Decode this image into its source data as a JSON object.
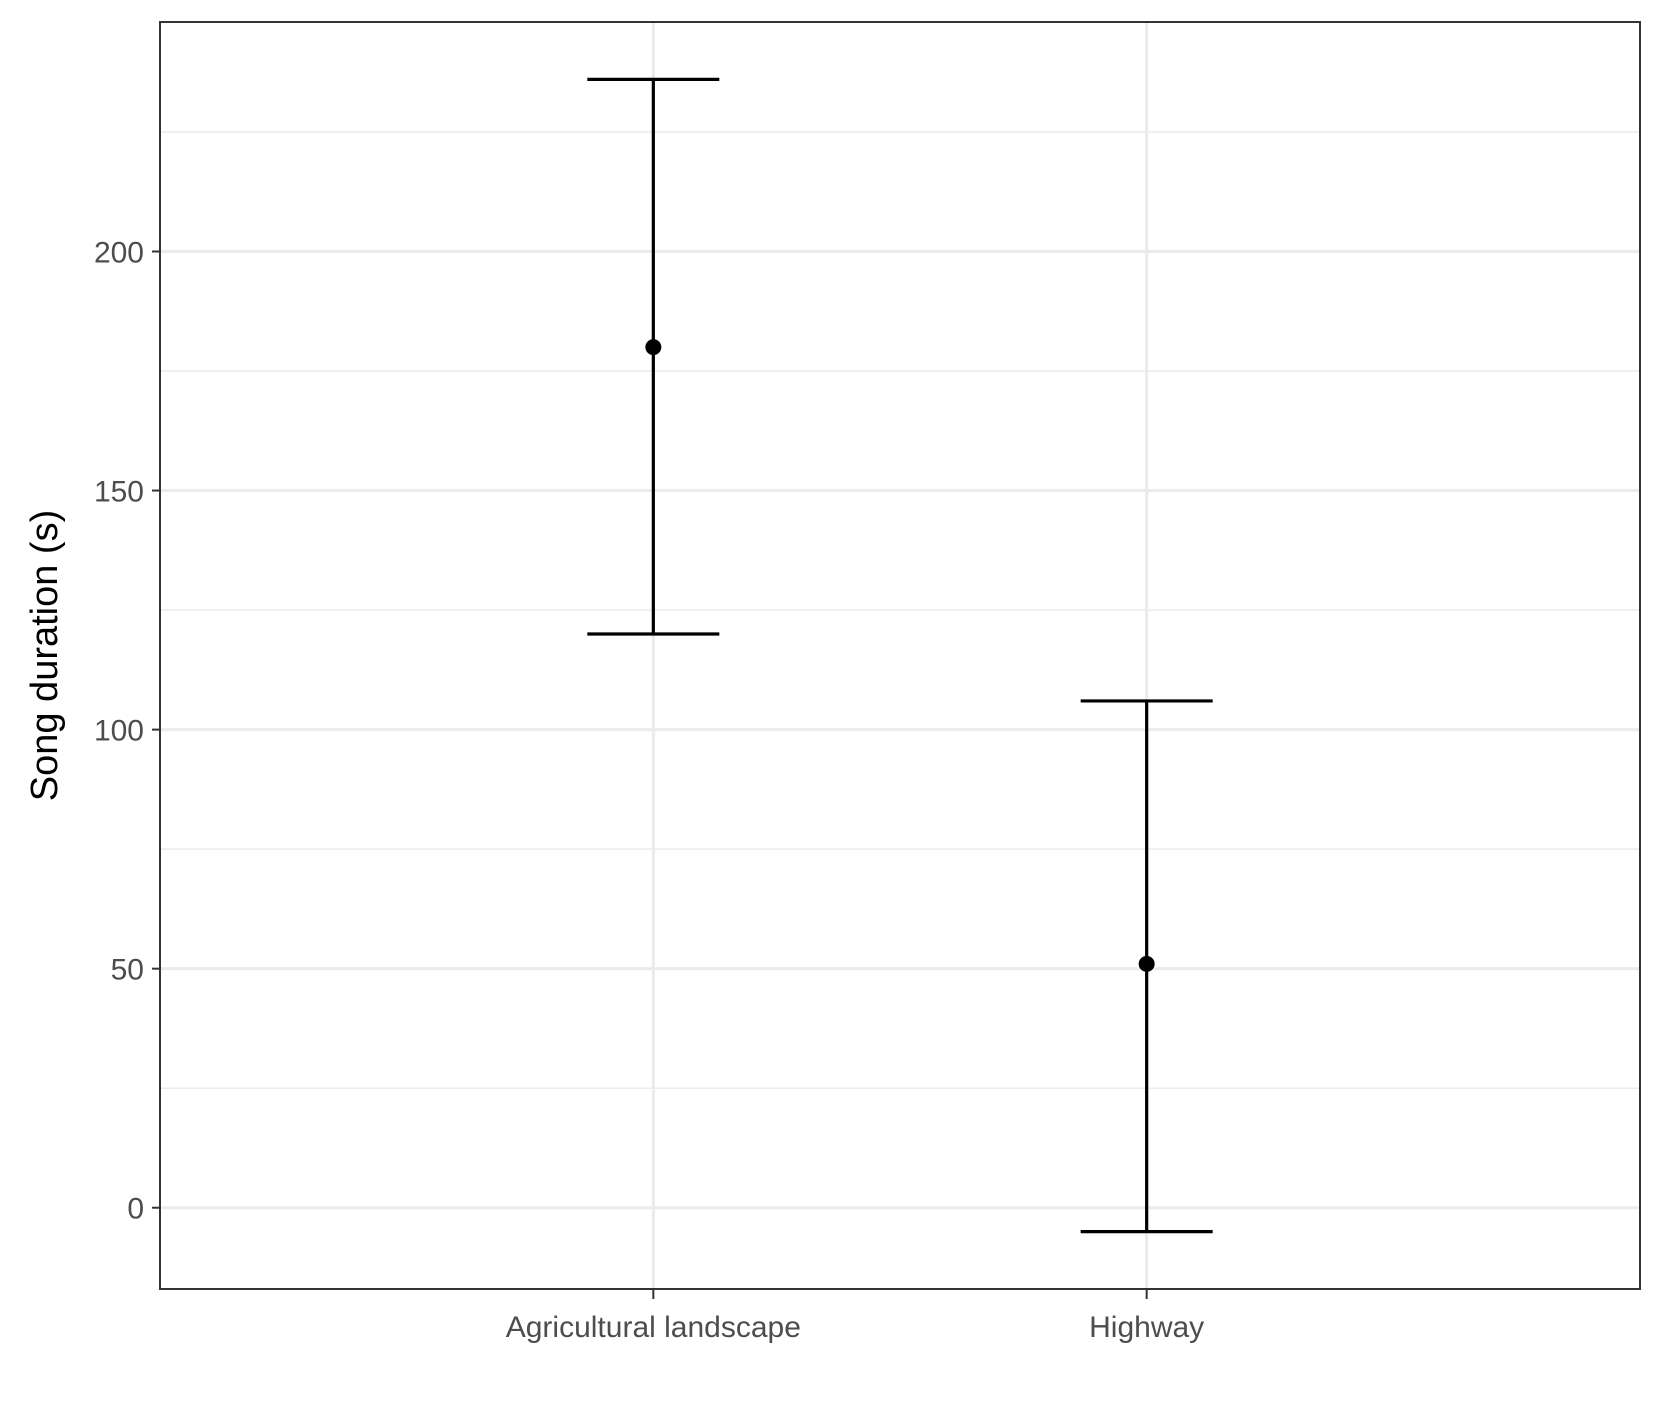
{
  "chart_data": {
    "type": "errorbar",
    "title": "",
    "xlabel": "",
    "ylabel": "Song duration (s)",
    "categories": [
      "Agricultural landscape",
      "Highway"
    ],
    "series": [
      {
        "points": [
          {
            "category": "Agricultural landscape",
            "mean": 180,
            "lower": 120,
            "upper": 236
          },
          {
            "category": "Highway",
            "mean": 51,
            "lower": -5,
            "upper": 106
          }
        ]
      }
    ],
    "yticks": [
      0,
      50,
      100,
      150,
      200
    ],
    "ylim": [
      -17,
      248
    ],
    "grid": true,
    "legend": "none",
    "colors": {
      "marks": "#000000",
      "grid": "#ebebeb",
      "panel_border": "#333333",
      "tick_text": "#4d4d4d"
    }
  }
}
